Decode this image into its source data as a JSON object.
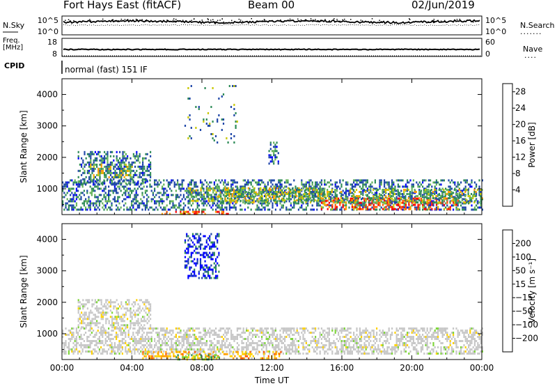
{
  "header": {
    "title": "Fort Hays East (fitACF)",
    "beam": "Beam 00",
    "date": "02/Jun/2019"
  },
  "top_panels": {
    "nsky_label": "N.Sky",
    "nsky_ticks": [
      "10^5",
      "10^0"
    ],
    "nsearch_label": "N.Search",
    "nsearch_ticks": [
      "10^5",
      "10^0"
    ],
    "freq_label_line1": "Freq.",
    "freq_label_line2": "[MHz]",
    "freq_ticks": [
      "18",
      "8"
    ],
    "nave_label": "Nave",
    "nave_ticks": [
      "60",
      "0"
    ],
    "cpid_label": "CPID",
    "cpid_text": "normal (fast) 151 IF"
  },
  "chart_data": [
    {
      "type": "heatmap",
      "name": "power",
      "ylabel": "Slant Range [km]",
      "xlabel": "",
      "x_ticks": [
        "00:00",
        "04:00",
        "08:00",
        "12:00",
        "16:00",
        "20:00",
        "00:00"
      ],
      "xlim_hours": [
        0,
        24
      ],
      "y_ticks": [
        1000,
        2000,
        3000,
        4000
      ],
      "ylim": [
        180,
        4500
      ],
      "colorbar": {
        "label": "Power [dB]",
        "ticks": [
          4,
          8,
          12,
          16,
          20,
          24,
          28
        ],
        "range": [
          0,
          30
        ],
        "colors": [
          "#0000ff",
          "#1e46a8",
          "#2e8b57",
          "#66b45a",
          "#c8c800",
          "#ffa000",
          "#ff5a00",
          "#ff0000"
        ]
      },
      "regions": [
        {
          "t": [
            0.9,
            5.1
          ],
          "r": [
            1200,
            2200
          ],
          "level": "low"
        },
        {
          "t": [
            1.6,
            4.0
          ],
          "r": [
            1400,
            1800
          ],
          "level": "mid"
        },
        {
          "t": [
            0.0,
            24.0
          ],
          "r": [
            350,
            1300
          ],
          "level": "low"
        },
        {
          "t": [
            7.2,
            15.0
          ],
          "r": [
            650,
            1050
          ],
          "level": "mid"
        },
        {
          "t": [
            5.6,
            9.5
          ],
          "r": [
            200,
            300
          ],
          "level": "high"
        },
        {
          "t": [
            14.8,
            22.6
          ],
          "r": [
            380,
            720
          ],
          "level": "high"
        },
        {
          "t": [
            9.0,
            24.0
          ],
          "r": [
            600,
            1000
          ],
          "level": "mid"
        },
        {
          "t": [
            7.0,
            10.0
          ],
          "r": [
            2500,
            4300
          ],
          "level": "sparse"
        },
        {
          "t": [
            11.8,
            12.4
          ],
          "r": [
            1800,
            2500
          ],
          "level": "low"
        }
      ]
    },
    {
      "type": "heatmap",
      "name": "velocity",
      "ylabel": "Slant Range [km]",
      "xlabel": "Time UT",
      "x_ticks": [
        "00:00",
        "04:00",
        "08:00",
        "12:00",
        "16:00",
        "20:00",
        "00:00"
      ],
      "xlim_hours": [
        0,
        24
      ],
      "y_ticks": [
        1000,
        2000,
        3000,
        4000
      ],
      "ylim": [
        180,
        4500
      ],
      "colorbar": {
        "label": "Velocity [m s⁻¹]",
        "ticks": [
          "200",
          "100",
          "50",
          "15",
          "−15",
          "−50",
          "−100",
          "−200"
        ],
        "range": [
          -250,
          250
        ],
        "colors": [
          "#0000ff",
          "#1e46a8",
          "#2e8b57",
          "#7fd63c",
          "#c8c8c8",
          "#ffd200",
          "#ffa000",
          "#ff5a00",
          "#ff0000"
        ]
      },
      "regions": [
        {
          "t": [
            0.9,
            5.1
          ],
          "r": [
            1200,
            2100
          ],
          "level": "ground"
        },
        {
          "t": [
            0.0,
            24.0
          ],
          "r": [
            350,
            1200
          ],
          "level": "ground"
        },
        {
          "t": [
            4.5,
            12.5
          ],
          "r": [
            200,
            450
          ],
          "level": "negative"
        },
        {
          "t": [
            6.5,
            9.0
          ],
          "r": [
            200,
            350
          ],
          "level": "green"
        },
        {
          "t": [
            7.0,
            9.0
          ],
          "r": [
            2800,
            4200
          ],
          "level": "positive"
        }
      ]
    }
  ]
}
